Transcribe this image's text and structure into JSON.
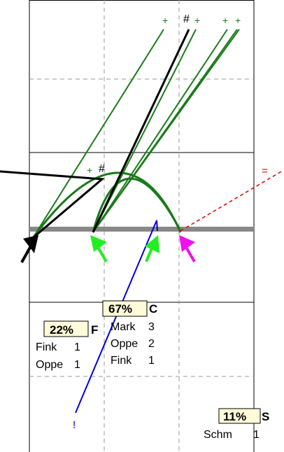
{
  "symbols": {
    "plus": "+",
    "hash": "#",
    "equals": "=",
    "exclaim": "!"
  },
  "colors": {
    "green": "#1a7a1a",
    "black": "#000000",
    "red": "#e00000",
    "blue": "#0000dd",
    "bright_green": "#22ee22",
    "magenta": "#ee11ee",
    "gray_band": "#888888",
    "box_fill": "#fffbd8"
  },
  "groups": {
    "F": {
      "percent": "22%",
      "code": "F",
      "rows": [
        {
          "name": "Fink",
          "count": "1"
        },
        {
          "name": "Oppe",
          "count": "1"
        }
      ]
    },
    "C": {
      "percent": "67%",
      "code": "C",
      "rows": [
        {
          "name": "Mark",
          "count": "3"
        },
        {
          "name": "Oppe",
          "count": "2"
        },
        {
          "name": "Fink",
          "count": "1"
        }
      ]
    },
    "S": {
      "percent": "11%",
      "code": "S",
      "rows": [
        {
          "name": "Schm",
          "count": "1"
        }
      ]
    }
  }
}
